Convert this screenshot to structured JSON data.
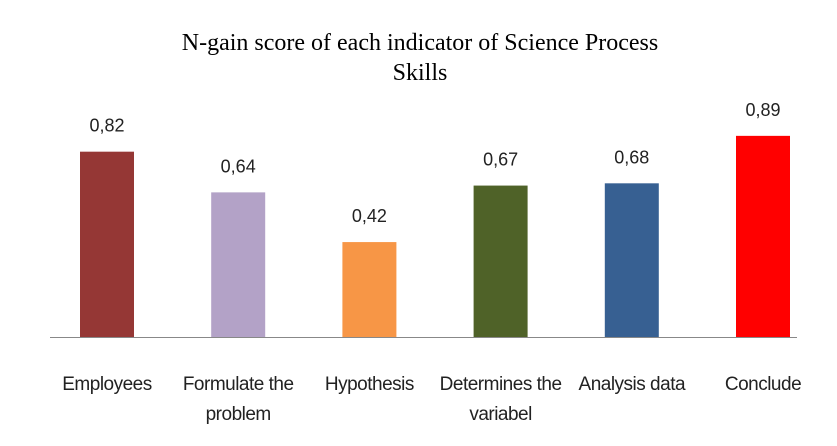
{
  "chart_data": {
    "type": "bar",
    "title": "N-gain score of each indicator of Science Process Skills",
    "categories": [
      "Employees",
      "Formulate the problem",
      "Hypothesis",
      "Determines the variabel",
      "Analysis data",
      "Conclude"
    ],
    "values": [
      0.82,
      0.64,
      0.42,
      0.67,
      0.68,
      0.89
    ],
    "value_labels": [
      "0,82",
      "0,64",
      "0,42",
      "0,67",
      "0,68",
      "0,89"
    ],
    "colors": [
      "#953735",
      "#b3a2c7",
      "#f79646",
      "#4f6228",
      "#376092",
      "#ff0000"
    ]
  }
}
